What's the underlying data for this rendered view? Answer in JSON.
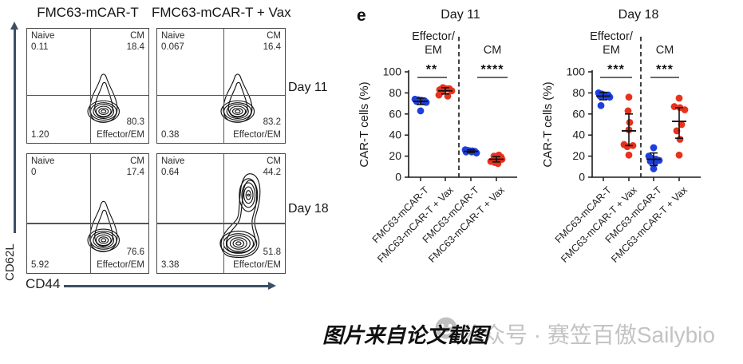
{
  "figure": {
    "panel_label": "e",
    "caption": "图片来自论文截图",
    "watermark_text": "公众号 · 赛笠百傲Sailybio",
    "watermark_icon": "smiley-face-icon"
  },
  "colors": {
    "control_blue": "#1d3fe0",
    "vax_red": "#e8321c",
    "axis_arrow": "#3d4f63",
    "watermark_gray": "#c3c3c3"
  },
  "flow": {
    "col_titles": [
      "FMC63-mCAR-T",
      "FMC63-mCAR-T + Vax"
    ],
    "row_labels": [
      "Day 11",
      "Day 18"
    ],
    "x_axis": "CD44",
    "y_axis": "CD62L",
    "panels": [
      {
        "row": "Day 11",
        "column": "FMC63-mCAR-T",
        "naive_label": "Naive",
        "naive_value": "0.11",
        "cm_label": "CM",
        "cm_value": "18.4",
        "effector_value": "80.3",
        "effector_label": "Effector/EM",
        "bottom_left_value": "1.20"
      },
      {
        "row": "Day 11",
        "column": "FMC63-mCAR-T + Vax",
        "naive_label": "Naive",
        "naive_value": "0.067",
        "cm_label": "CM",
        "cm_value": "16.4",
        "effector_value": "83.2",
        "effector_label": "Effector/EM",
        "bottom_left_value": "0.38"
      },
      {
        "row": "Day 18",
        "column": "FMC63-mCAR-T",
        "naive_label": "Naive",
        "naive_value": "0",
        "cm_label": "CM",
        "cm_value": "17.4",
        "effector_value": "76.6",
        "effector_label": "Effector/EM",
        "bottom_left_value": "5.92"
      },
      {
        "row": "Day 18",
        "column": "FMC63-mCAR-T + Vax",
        "naive_label": "Naive",
        "naive_value": "0.64",
        "cm_label": "CM",
        "cm_value": "44.2",
        "effector_value": "51.8",
        "effector_label": "Effector/EM",
        "bottom_left_value": "3.38"
      }
    ]
  },
  "chart_data": [
    {
      "type": "scatter",
      "title": "Day 11",
      "ylabel": "CAR-T cells (%)",
      "ylim": [
        0,
        100
      ],
      "yticks": [
        0,
        20,
        40,
        60,
        80,
        100
      ],
      "grid": false,
      "categories": [
        "FMC63-mCAR-T",
        "FMC63-mCAR-T + Vax",
        "FMC63-mCAR-T",
        "FMC63-mCAR-T + Vax"
      ],
      "groups": [
        {
          "label_line1": "Effector/",
          "label_line2": "EM",
          "sig": "**"
        },
        {
          "label_line1": "CM",
          "label_line2": "",
          "sig": "****"
        }
      ],
      "series": [
        {
          "name": "FMC63-mCAR-T (Effector/EM)",
          "color": "#1d3fe0",
          "values": [
            74,
            73.5,
            73,
            72.5,
            72,
            72,
            71,
            63
          ],
          "mean": 72,
          "sd_lo": 69,
          "sd_hi": 75
        },
        {
          "name": "FMC63-mCAR-T + Vax (Effector/EM)",
          "color": "#e8321c",
          "values": [
            85,
            84,
            84,
            83,
            82,
            81,
            78,
            77
          ],
          "mean": 82,
          "sd_lo": 79,
          "sd_hi": 85
        },
        {
          "name": "FMC63-mCAR-T (CM)",
          "color": "#1d3fe0",
          "values": [
            26,
            25.5,
            25,
            25,
            24.5,
            24,
            24,
            23
          ],
          "mean": 24.5,
          "sd_lo": 23.5,
          "sd_hi": 26
        },
        {
          "name": "FMC63-mCAR-T + Vax (CM)",
          "color": "#e8321c",
          "values": [
            21,
            20,
            19,
            18,
            17,
            15,
            14,
            13
          ],
          "mean": 17,
          "sd_lo": 14.5,
          "sd_hi": 19.5
        }
      ]
    },
    {
      "type": "scatter",
      "title": "Day 18",
      "ylabel": "CAR-T cells (%)",
      "ylim": [
        0,
        100
      ],
      "yticks": [
        0,
        20,
        40,
        60,
        80,
        100
      ],
      "grid": false,
      "categories": [
        "FMC63-mCAR-T",
        "FMC63-mCAR-T + Vax",
        "FMC63-mCAR-T",
        "FMC63-mCAR-T + Vax"
      ],
      "groups": [
        {
          "label_line1": "Effector/",
          "label_line2": "EM",
          "sig": "***"
        },
        {
          "label_line1": "CM",
          "label_line2": "",
          "sig": "***"
        }
      ],
      "series": [
        {
          "name": "FMC63-mCAR-T (Effector/EM)",
          "color": "#1d3fe0",
          "values": [
            80,
            79,
            78,
            78,
            77,
            77,
            76,
            68
          ],
          "mean": 77,
          "sd_lo": 73.5,
          "sd_hi": 80.5
        },
        {
          "name": "FMC63-mCAR-T + Vax (Effector/EM)",
          "color": "#e8321c",
          "values": [
            76,
            63,
            52,
            45,
            31,
            30,
            29,
            21
          ],
          "mean": 44,
          "sd_lo": 30,
          "sd_hi": 60
        },
        {
          "name": "FMC63-mCAR-T (CM)",
          "color": "#1d3fe0",
          "values": [
            28,
            20,
            18,
            17,
            16,
            15,
            14,
            8
          ],
          "mean": 17,
          "sd_lo": 11,
          "sd_hi": 23
        },
        {
          "name": "FMC63-mCAR-T + Vax (CM)",
          "color": "#e8321c",
          "values": [
            75,
            67,
            66,
            64,
            50,
            44,
            36,
            21
          ],
          "mean": 53,
          "sd_lo": 37,
          "sd_hi": 66
        }
      ]
    }
  ]
}
